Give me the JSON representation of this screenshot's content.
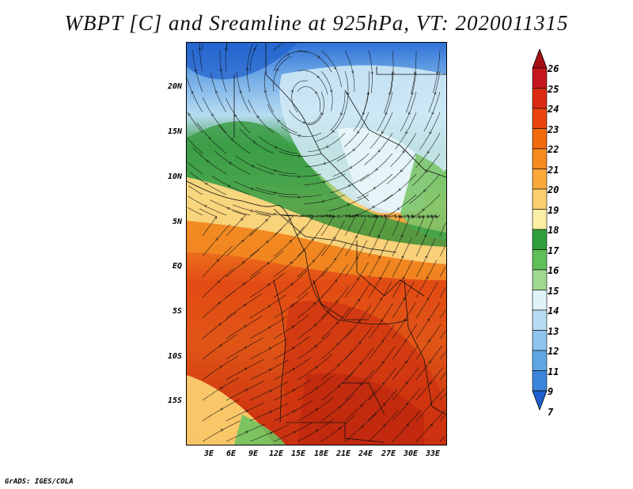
{
  "title": "WBPT [C] and Sreamline at 925hPa, VT: 2020011315",
  "credit": "GrADS: IGES/COLA",
  "map": {
    "y_ticks": [
      "20N",
      "15N",
      "10N",
      "5N",
      "EQ",
      "5S",
      "10S",
      "15S"
    ],
    "x_ticks": [
      "3E",
      "6E",
      "9E",
      "12E",
      "15E",
      "18E",
      "21E",
      "24E",
      "27E",
      "30E",
      "33E"
    ],
    "lon_range": [
      0,
      35
    ],
    "lat_range": [
      -20,
      25
    ]
  },
  "colorbar": {
    "labels": [
      "26",
      "25",
      "24",
      "23",
      "22",
      "21",
      "20",
      "19",
      "18",
      "17",
      "16",
      "15",
      "14",
      "13",
      "12",
      "11",
      "9",
      "7"
    ],
    "colors": [
      "#a50f15",
      "#c4161c",
      "#dd2b12",
      "#e9440f",
      "#f26a0b",
      "#f68a1e",
      "#f9a83a",
      "#fbcf6e",
      "#fcefa6",
      "#2f9e3a",
      "#5fbf58",
      "#9ed98f",
      "#e0f3f8",
      "#b7dcf2",
      "#8ec3ec",
      "#60a6e5",
      "#3b85dc",
      "#1f5fcc"
    ]
  }
}
